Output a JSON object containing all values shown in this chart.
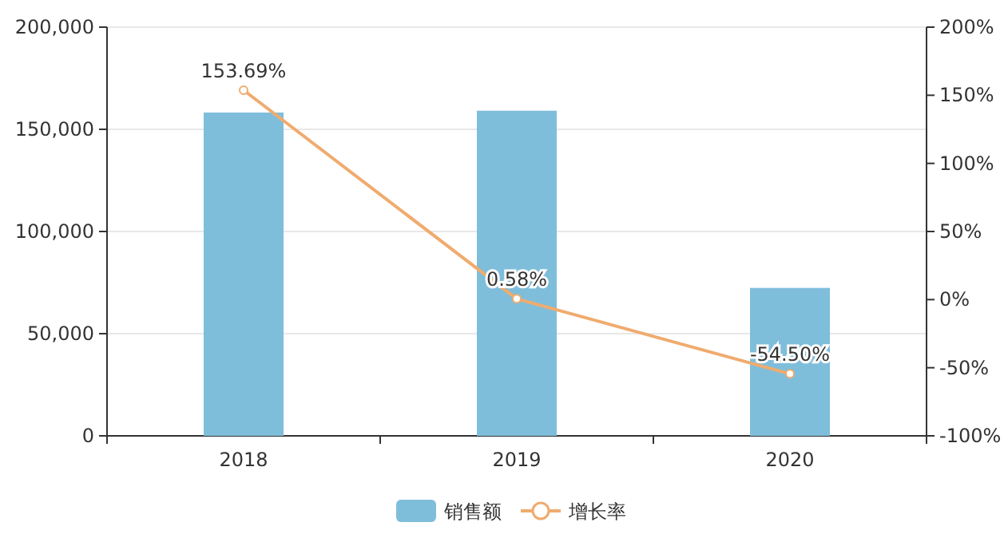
{
  "chart_data": {
    "type": "bar",
    "categories": [
      "2018",
      "2019",
      "2020"
    ],
    "series": [
      {
        "name": "销售额",
        "color": "#7fbedb",
        "values": [
          158200,
          159100,
          72400
        ]
      },
      {
        "name": "增长率",
        "type": "line",
        "axis": "y2",
        "color": "#f0ab6e",
        "values": [
          153.69,
          0.58,
          -54.5
        ],
        "value_labels": [
          "153.69%",
          "0.58%",
          "-54.50%"
        ]
      }
    ],
    "ylim": [
      0,
      200000
    ],
    "yticks": [
      {
        "value": 0,
        "label": "0"
      },
      {
        "value": 50000,
        "label": "50,000"
      },
      {
        "value": 100000,
        "label": "100,000"
      },
      {
        "value": 150000,
        "label": "150,000"
      },
      {
        "value": 200000,
        "label": "200,000"
      }
    ],
    "y2lim": [
      -100,
      200
    ],
    "y2ticks": [
      {
        "value": -100,
        "label": "-100%"
      },
      {
        "value": -50,
        "label": "-50%"
      },
      {
        "value": 0,
        "label": "0%"
      },
      {
        "value": 50,
        "label": "50%"
      },
      {
        "value": 100,
        "label": "100%"
      },
      {
        "value": 150,
        "label": "150%"
      },
      {
        "value": 200,
        "label": "200%"
      }
    ],
    "grid": "y",
    "legend": "bottom",
    "marker": "circle"
  }
}
